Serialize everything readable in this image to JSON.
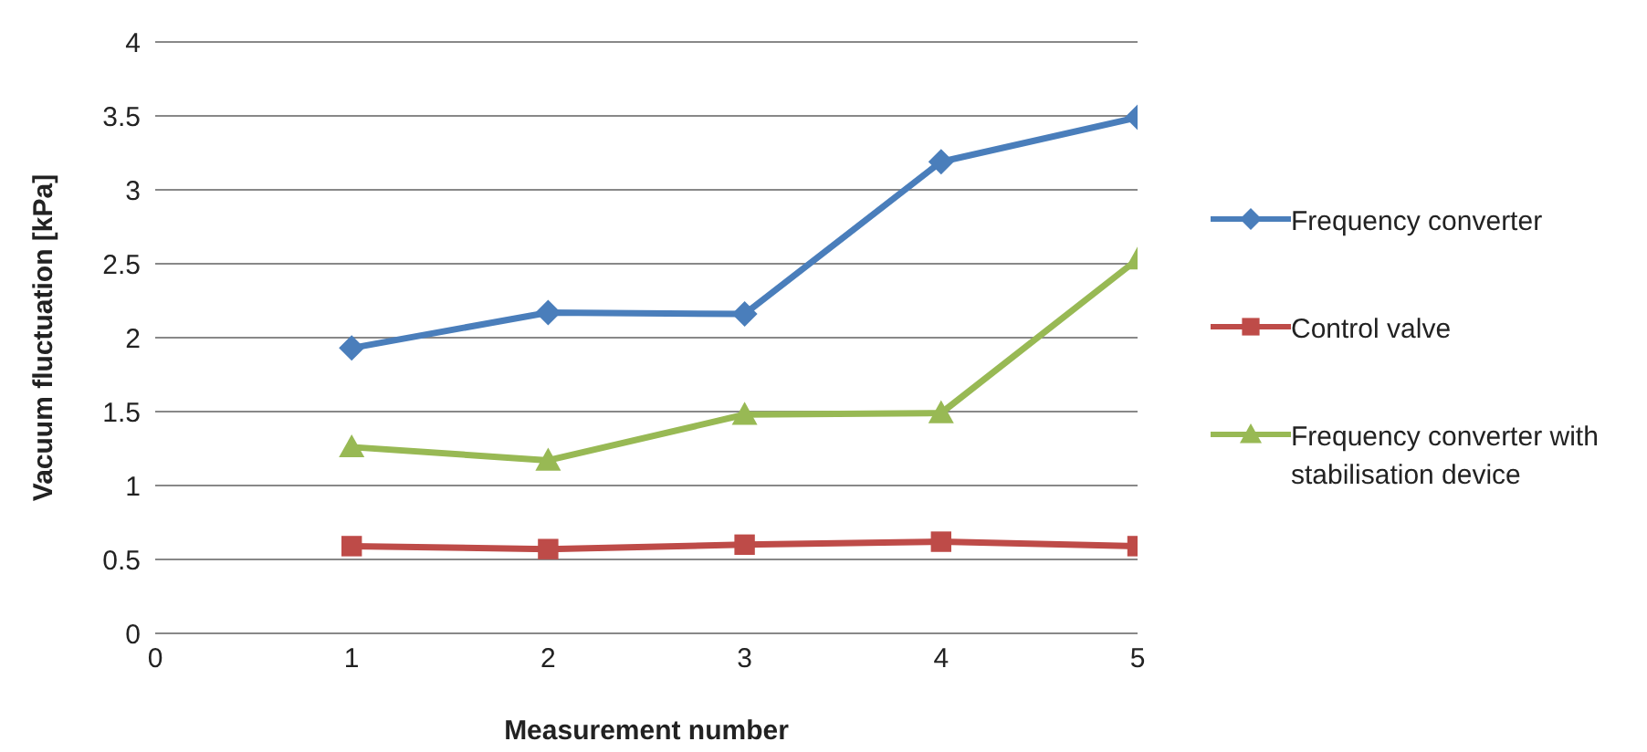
{
  "chart_data": {
    "type": "line",
    "xlabel": "Measurement number",
    "ylabel": "Vacuum fluctuation [kPa]",
    "x": [
      1,
      2,
      3,
      4,
      5
    ],
    "xlim": [
      0,
      5
    ],
    "xticks": [
      0,
      1,
      2,
      3,
      4,
      5
    ],
    "ylim": [
      0,
      4
    ],
    "yticks": [
      0,
      0.5,
      1,
      1.5,
      2,
      2.5,
      3,
      3.5,
      4
    ],
    "grid": "y",
    "legend": "right",
    "line_style": "solid",
    "series": [
      {
        "name": "Frequency converter",
        "color": "#4a7ebb",
        "marker": "diamond",
        "values": [
          1.93,
          2.17,
          2.16,
          3.19,
          3.49
        ]
      },
      {
        "name": "Control valve",
        "color": "#be4b48",
        "marker": "square",
        "values": [
          0.59,
          0.57,
          0.6,
          0.62,
          0.59
        ]
      },
      {
        "name": "Frequency converter with stabilisation device",
        "color": "#98b954",
        "marker": "triangle",
        "values": [
          1.26,
          1.17,
          1.48,
          1.49,
          2.53
        ]
      }
    ]
  }
}
